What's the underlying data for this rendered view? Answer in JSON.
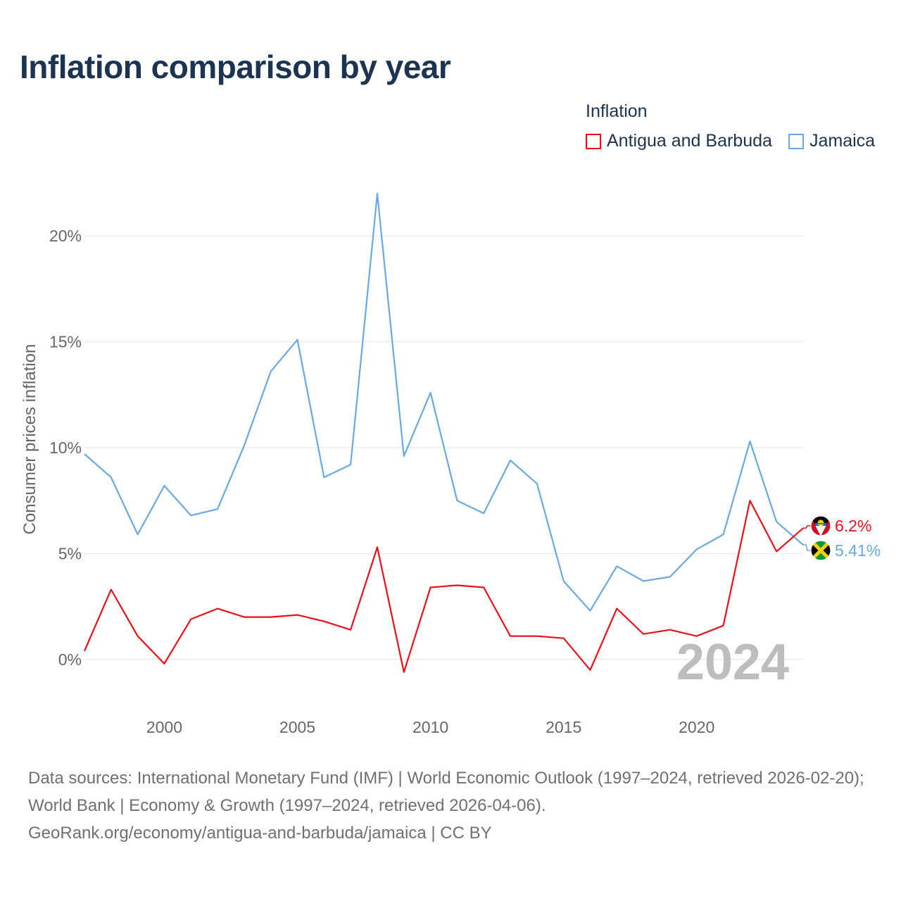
{
  "title": "Inflation comparison by year",
  "legend": {
    "title": "Inflation",
    "items": [
      {
        "label": "Antigua and Barbuda",
        "color": "#e8111b"
      },
      {
        "label": "Jamaica",
        "color": "#6aa9e2"
      }
    ]
  },
  "source": {
    "line1": "Data sources: International Monetary Fund (IMF) | World Economic Outlook (1997–2024, retrieved 2026-02-20); World Bank | Economy & Growth (1997–2024, retrieved 2026-04-06).",
    "line2": "GeoRank.org/economy/antigua-and-barbuda/jamaica | CC BY"
  },
  "chart_data": {
    "type": "line",
    "title": "Inflation comparison by year",
    "xlabel": "",
    "ylabel": "Consumer prices inflation",
    "year_label": "2024",
    "xlim": [
      1997,
      2024
    ],
    "ylim": [
      -2.5,
      22.5
    ],
    "x_ticks": [
      2000,
      2005,
      2010,
      2015,
      2020
    ],
    "x_tick_labels": [
      "2000",
      "2005",
      "2010",
      "2015",
      "2020"
    ],
    "y_ticks": [
      0,
      5,
      10,
      15,
      20
    ],
    "y_tick_labels": [
      "0%",
      "5%",
      "10%",
      "15%",
      "20%"
    ],
    "grid": true,
    "x": [
      1997,
      1998,
      1999,
      2000,
      2001,
      2002,
      2003,
      2004,
      2005,
      2006,
      2007,
      2008,
      2009,
      2010,
      2011,
      2012,
      2013,
      2014,
      2015,
      2016,
      2017,
      2018,
      2019,
      2020,
      2021,
      2022,
      2023,
      2024
    ],
    "series": [
      {
        "name": "Antigua and Barbuda",
        "color": "#e8111b",
        "end_label": "6.2%",
        "values": [
          0.4,
          3.3,
          1.1,
          -0.2,
          1.9,
          2.4,
          2.0,
          2.0,
          2.1,
          1.8,
          1.4,
          5.3,
          -0.6,
          3.4,
          3.5,
          3.4,
          1.1,
          1.1,
          1.0,
          -0.5,
          2.4,
          1.2,
          1.4,
          1.1,
          1.6,
          7.5,
          5.1,
          6.2
        ]
      },
      {
        "name": "Jamaica",
        "color": "#6aa9e2",
        "end_label": "5.41%",
        "values": [
          9.7,
          8.6,
          5.9,
          8.2,
          6.8,
          7.1,
          10.1,
          13.6,
          15.1,
          8.6,
          9.2,
          22.0,
          9.6,
          12.6,
          7.5,
          6.9,
          9.4,
          8.3,
          3.7,
          2.3,
          4.4,
          3.7,
          3.9,
          5.2,
          5.9,
          10.3,
          6.5,
          5.41
        ]
      }
    ]
  }
}
